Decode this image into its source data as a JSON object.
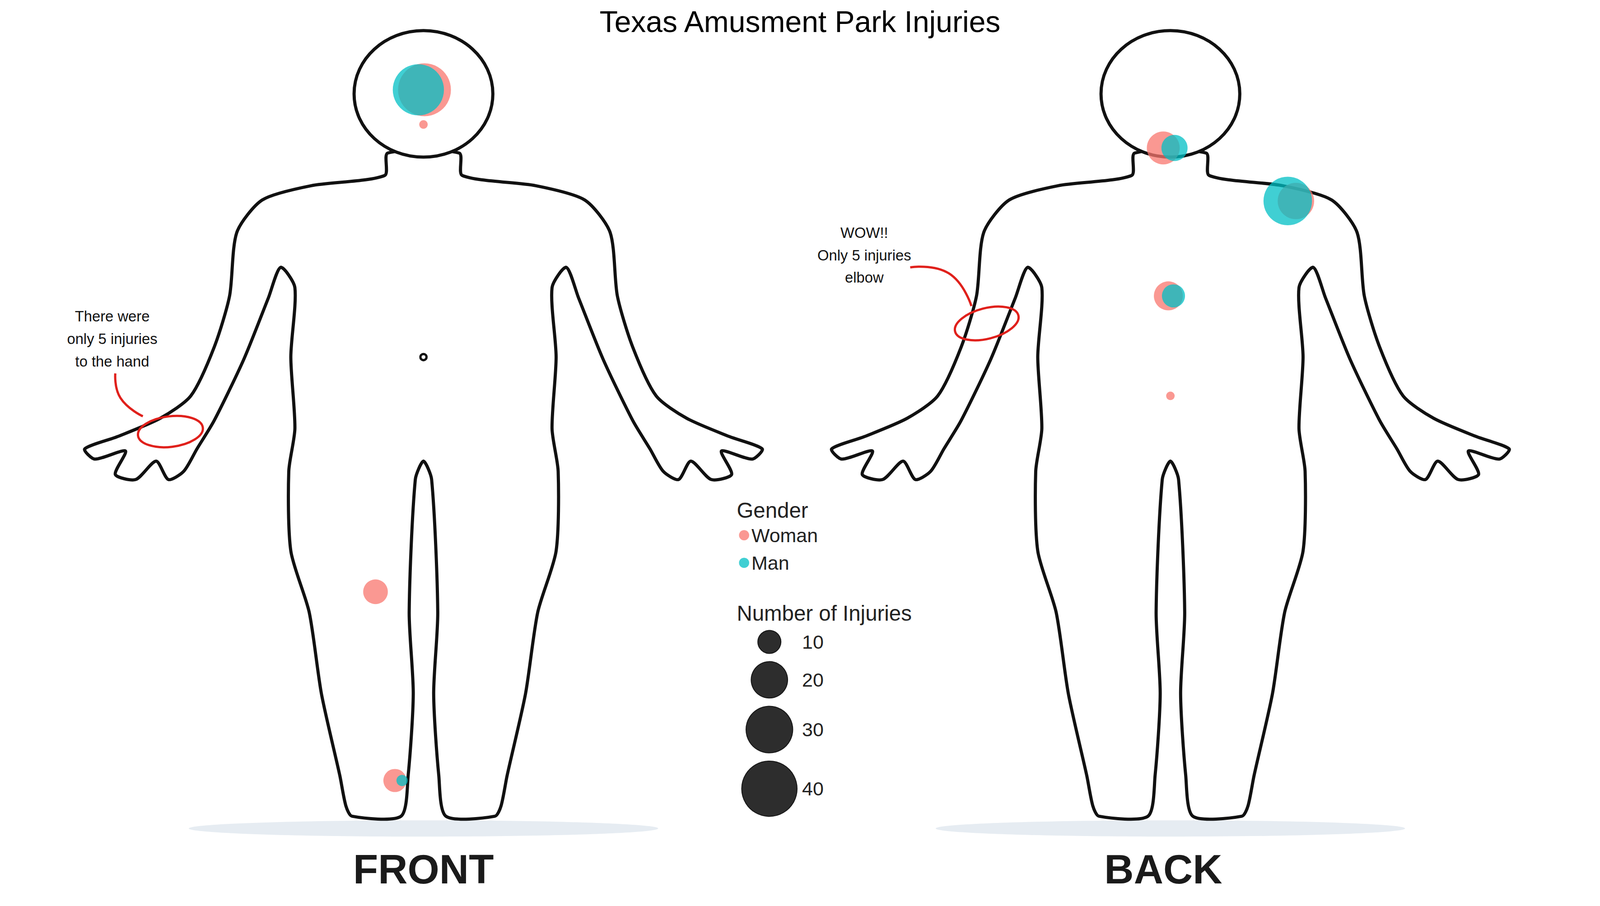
{
  "chart_data": {
    "type": "scatter",
    "title": "Texas Amusment Park Injuries",
    "xlim": [
      0,
      1568
    ],
    "ylim": [
      0,
      888
    ],
    "xticks": [
      0,
      1568
    ],
    "yticks": [
      0,
      888
    ],
    "grid": false,
    "tick_labels": false,
    "marker": "circle",
    "legend": "center",
    "legend_title": "Gender",
    "series": [
      {
        "name": "Woman",
        "color": "#F8766D",
        "x": [
          416,
          415,
          368,
          387,
          1140,
          1270,
          1145,
          1147
        ],
        "y": [
          88,
          122,
          580,
          765,
          145,
          197,
          290,
          388
        ],
        "size": [
          37,
          3,
          11,
          10,
          17,
          20,
          14,
          3
        ]
      },
      {
        "name": "Man",
        "color": "#00BFC4",
        "x": [
          410,
          394,
          1151,
          1262,
          1150
        ],
        "y": [
          88,
          765,
          145,
          197,
          290
        ],
        "size": [
          35,
          4,
          12,
          32,
          10
        ]
      }
    ],
    "size_legend": {
      "title": "Number of Injuries",
      "values": [
        10,
        20,
        30,
        40
      ]
    },
    "annotations": [
      {
        "lines": [
          "There were",
          "only 5 injuries",
          "to the hand"
        ]
      },
      {
        "lines": [
          "WOW!!",
          "Only 5 injuries",
          "elbow"
        ]
      }
    ],
    "view_labels": [
      "FRONT",
      "BACK"
    ]
  }
}
